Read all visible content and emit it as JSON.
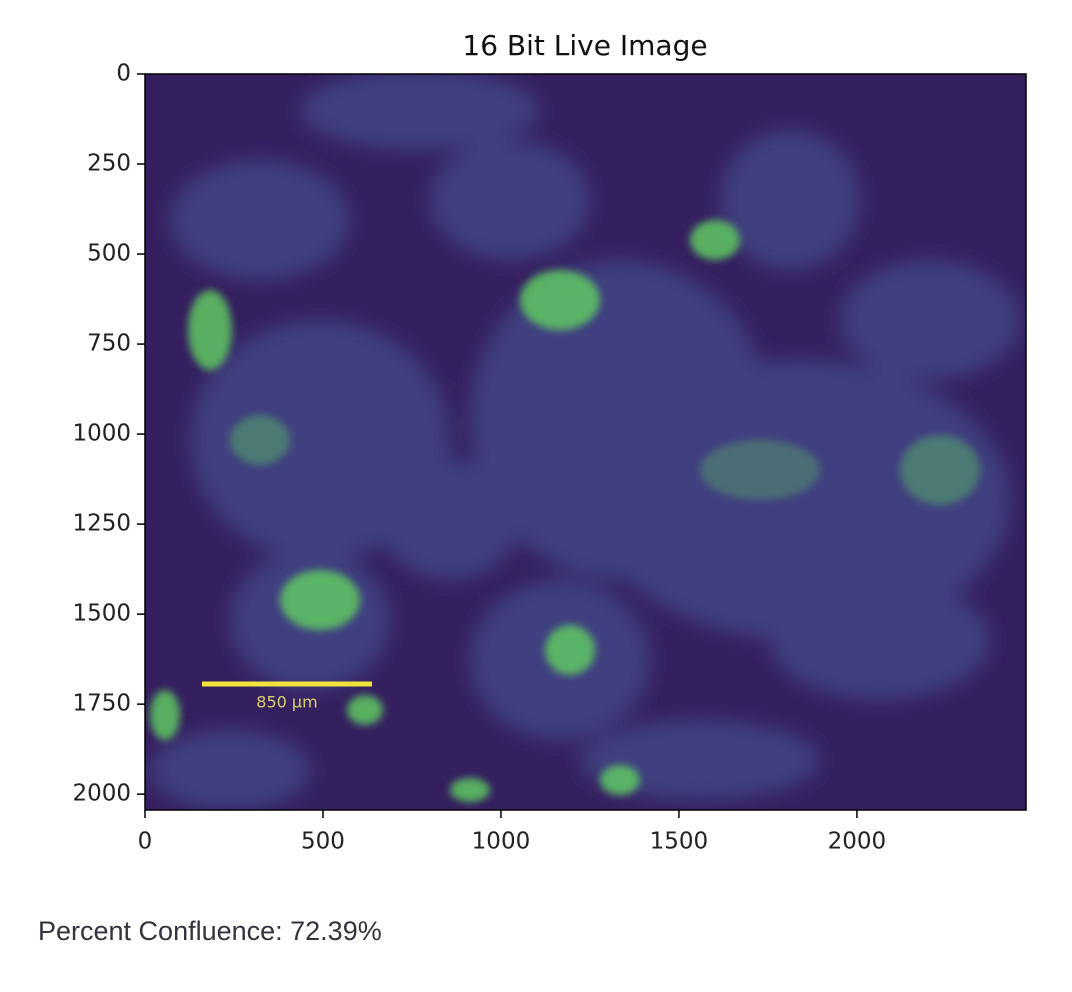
{
  "chart_data": {
    "type": "image",
    "title": "16 Bit Live Image",
    "xlim": [
      0,
      2475
    ],
    "ylim": [
      2044,
      0
    ],
    "xticks": [
      0,
      500,
      1000,
      1500,
      2000
    ],
    "yticks": [
      0,
      250,
      500,
      750,
      1000,
      1250,
      1500,
      1750,
      2000
    ],
    "scale_bar_label": "850 µm"
  },
  "caption": "Percent Confluence: 72.39%"
}
